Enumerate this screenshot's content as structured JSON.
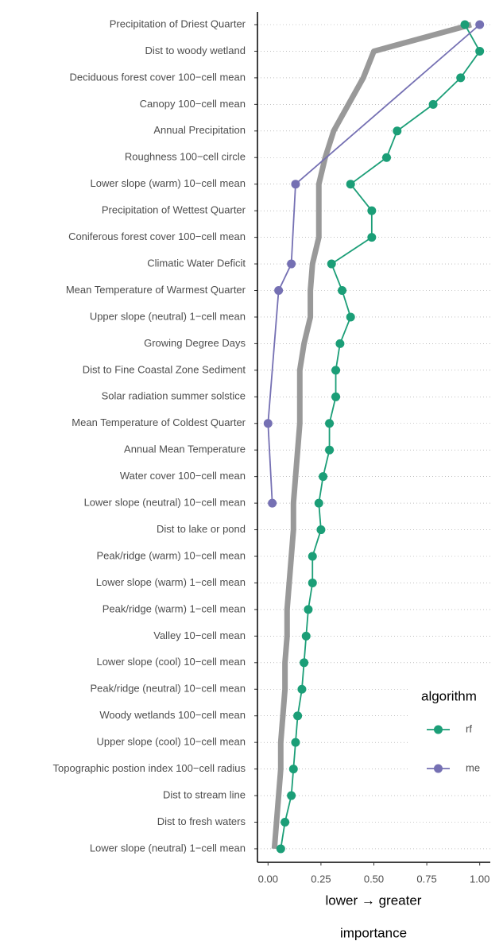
{
  "chart_data": {
    "type": "dot-line",
    "x_label_lines": [
      "lower → greater",
      "importance"
    ],
    "legend_title": "algorithm",
    "legend_position": "right",
    "categories": [
      "Precipitation of Driest Quarter",
      "Dist to woody wetland",
      "Deciduous forest cover 100−cell mean",
      "Canopy 100−cell mean",
      "Annual Precipitation",
      "Roughness 100−cell circle",
      "Lower slope (warm) 10−cell mean",
      "Precipitation of Wettest Quarter",
      "Coniferous forest cover 100−cell mean",
      "Climatic Water Deficit",
      "Mean Temperature of Warmest Quarter",
      "Upper slope (neutral) 1−cell mean",
      "Growing Degree Days",
      "Dist to Fine Coastal Zone Sediment",
      "Solar radiation summer solstice",
      "Mean Temperature of Coldest Quarter",
      "Annual Mean Temperature",
      "Water cover 100−cell mean",
      "Lower slope (neutral) 10−cell mean",
      "Dist to lake or pond",
      "Peak/ridge (warm) 10−cell mean",
      "Lower slope (warm) 1−cell mean",
      "Peak/ridge (warm) 1−cell mean",
      "Valley 10−cell mean",
      "Lower slope (cool) 10−cell mean",
      "Peak/ridge (neutral) 10−cell mean",
      "Woody wetlands 100−cell mean",
      "Upper slope (cool) 10−cell mean",
      "Topographic postion index 100−cell radius",
      "Dist to stream line",
      "Dist to fresh waters",
      "Lower slope (neutral) 1−cell mean"
    ],
    "series": [
      {
        "color": "#999999",
        "values": [
          0.96,
          0.5,
          0.45,
          0.38,
          0.31,
          0.27,
          0.24,
          0.24,
          0.24,
          0.21,
          0.2,
          0.2,
          0.17,
          0.15,
          0.15,
          0.15,
          0.14,
          0.13,
          0.12,
          0.12,
          0.11,
          0.1,
          0.09,
          0.09,
          0.08,
          0.08,
          0.07,
          0.06,
          0.06,
          0.05,
          0.04,
          0.03
        ]
      },
      {
        "name": "rf",
        "color": "#1b9e77",
        "values": [
          0.93,
          1.0,
          0.91,
          0.78,
          0.61,
          0.56,
          0.39,
          0.49,
          0.49,
          0.3,
          0.35,
          0.39,
          0.34,
          0.32,
          0.32,
          0.29,
          0.29,
          0.26,
          0.24,
          0.25,
          0.21,
          0.21,
          0.19,
          0.18,
          0.17,
          0.16,
          0.14,
          0.13,
          0.12,
          0.11,
          0.08,
          0.06
        ]
      },
      {
        "name": "me",
        "color": "#7570b3",
        "values": [
          1.0,
          null,
          null,
          null,
          null,
          null,
          0.13,
          null,
          null,
          0.11,
          0.05,
          null,
          null,
          null,
          null,
          0.0,
          null,
          null,
          0.02,
          null,
          null,
          null,
          null,
          null,
          null,
          null,
          null,
          null,
          null,
          null,
          null,
          null
        ]
      }
    ],
    "xlim": [
      -0.05,
      1.05
    ],
    "xticks": [
      {
        "value": 0,
        "label": "0.00"
      },
      {
        "value": 0.25,
        "label": "0.25"
      },
      {
        "value": 0.5,
        "label": "0.50"
      },
      {
        "value": 0.75,
        "label": "0.75"
      },
      {
        "value": 1,
        "label": "1.00"
      }
    ],
    "grid": true
  }
}
